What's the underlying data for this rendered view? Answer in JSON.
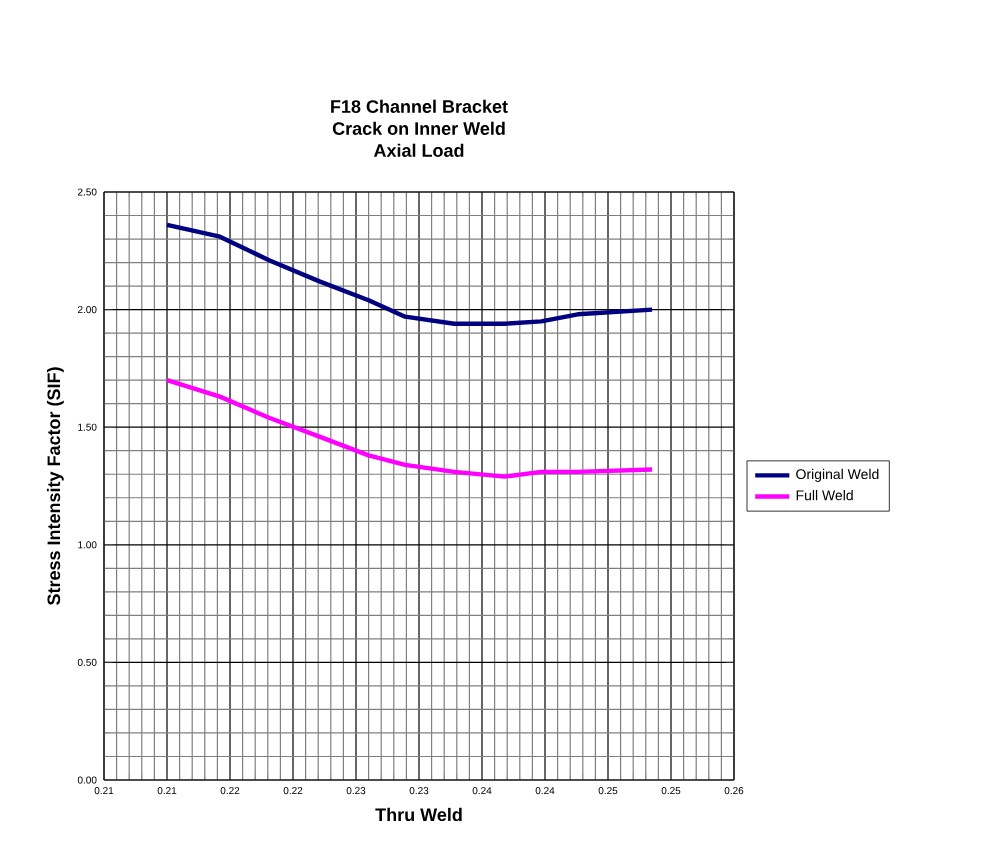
{
  "chart_data": {
    "type": "line",
    "title": "F18 Channel Bracket\nCrack on Inner Weld\nAxial Load",
    "xlabel": "Thru Weld",
    "ylabel": "Stress Intensity Factor (SIF)",
    "x": [
      0.21,
      0.2142,
      0.2181,
      0.2221,
      0.226,
      0.2289,
      0.2328,
      0.2368,
      0.2397,
      0.2426,
      0.2485
    ],
    "series": [
      {
        "name": "Original Weld",
        "color": "#000080",
        "values": [
          2.36,
          2.31,
          2.21,
          2.12,
          2.04,
          1.97,
          1.94,
          1.94,
          1.95,
          1.98,
          2.0
        ]
      },
      {
        "name": "Full Weld",
        "color": "#ff00ff",
        "values": [
          1.7,
          1.63,
          1.54,
          1.46,
          1.38,
          1.34,
          1.31,
          1.29,
          1.31,
          1.31,
          1.32
        ]
      }
    ],
    "xlim": [
      0.205,
      0.255
    ],
    "xticks": [
      {
        "value": 0.205,
        "label": "0.21"
      },
      {
        "value": 0.21,
        "label": "0.21"
      },
      {
        "value": 0.215,
        "label": "0.22"
      },
      {
        "value": 0.22,
        "label": "0.22"
      },
      {
        "value": 0.225,
        "label": "0.23"
      },
      {
        "value": 0.23,
        "label": "0.23"
      },
      {
        "value": 0.235,
        "label": "0.24"
      },
      {
        "value": 0.24,
        "label": "0.24"
      },
      {
        "value": 0.245,
        "label": "0.25"
      },
      {
        "value": 0.25,
        "label": "0.25"
      },
      {
        "value": 0.255,
        "label": "0.26"
      }
    ],
    "ylim": [
      0,
      2.5
    ],
    "yticks": [
      {
        "value": 0,
        "label": "0.00"
      },
      {
        "value": 0.5,
        "label": "0.50"
      },
      {
        "value": 1,
        "label": "1.00"
      },
      {
        "value": 1.5,
        "label": "1.50"
      },
      {
        "value": 2,
        "label": "2.00"
      },
      {
        "value": 2.5,
        "label": "2.50"
      }
    ],
    "grid": true,
    "legend": "right",
    "marker": "none",
    "line_style": "solid"
  }
}
